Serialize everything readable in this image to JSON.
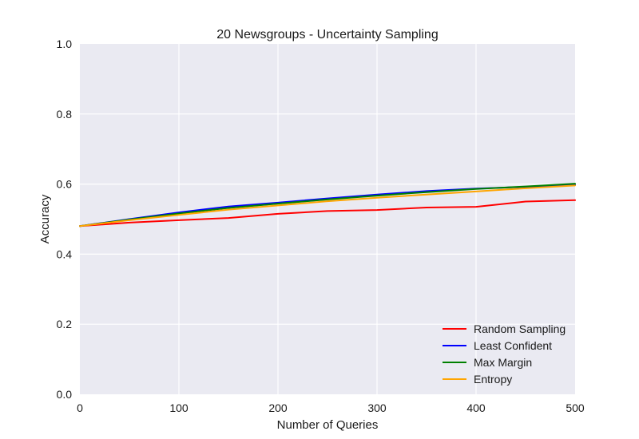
{
  "chart_data": {
    "type": "line",
    "title": "20 Newsgroups - Uncertainty Sampling",
    "xlabel": "Number of Queries",
    "ylabel": "Accuracy",
    "xlim": [
      0,
      500
    ],
    "ylim": [
      0.0,
      1.0
    ],
    "xticks": [
      "0",
      "100",
      "200",
      "300",
      "400",
      "500"
    ],
    "yticks": [
      "0.0",
      "0.2",
      "0.4",
      "0.6",
      "0.8",
      "1.0"
    ],
    "grid": true,
    "legend_position": "bottom-right",
    "x": [
      0,
      50,
      100,
      150,
      200,
      250,
      300,
      350,
      400,
      450,
      500
    ],
    "series": [
      {
        "name": "Random Sampling",
        "color": "#ff0000",
        "values": [
          0.48,
          0.49,
          0.497,
          0.503,
          0.515,
          0.523,
          0.526,
          0.533,
          0.535,
          0.55,
          0.554
        ]
      },
      {
        "name": "Least Confident",
        "color": "#0000ff",
        "values": [
          0.48,
          0.5,
          0.519,
          0.536,
          0.547,
          0.559,
          0.57,
          0.58,
          0.587,
          0.592,
          0.598
        ]
      },
      {
        "name": "Max Margin",
        "color": "#008000",
        "values": [
          0.48,
          0.499,
          0.516,
          0.532,
          0.544,
          0.556,
          0.567,
          0.577,
          0.586,
          0.593,
          0.601
        ]
      },
      {
        "name": "Entropy",
        "color": "#ffa500",
        "values": [
          0.48,
          0.497,
          0.512,
          0.527,
          0.539,
          0.551,
          0.561,
          0.57,
          0.579,
          0.588,
          0.596
        ]
      }
    ]
  }
}
